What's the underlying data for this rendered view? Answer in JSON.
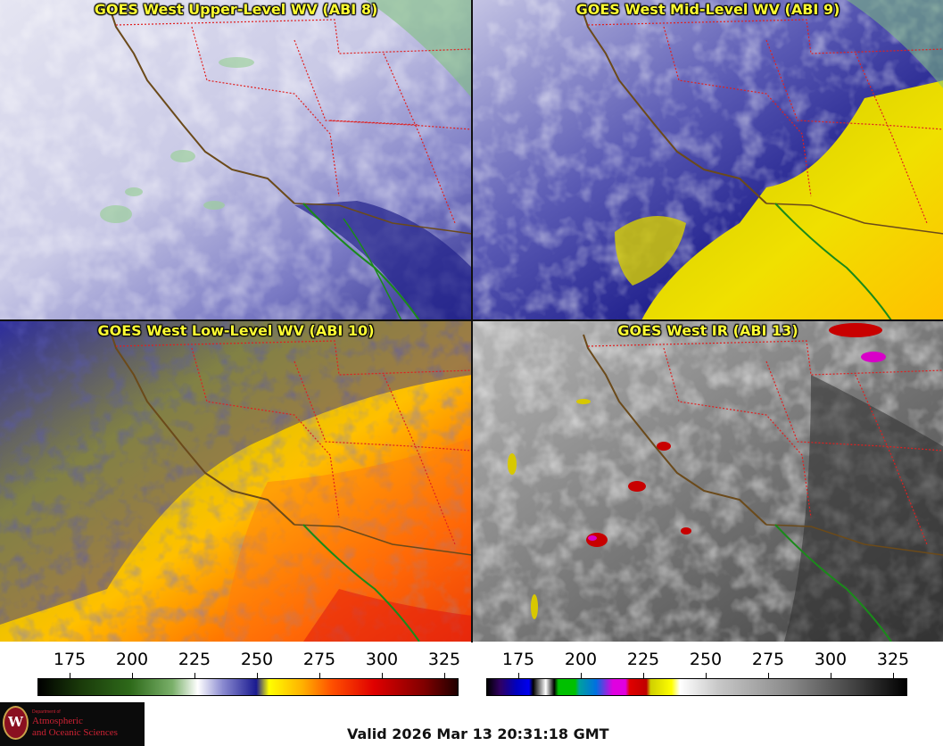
{
  "panels": [
    {
      "title": "GOES West Upper-Level WV (ABI 8)",
      "scheme": "upper"
    },
    {
      "title": "GOES West Mid-Level WV (ABI 9)",
      "scheme": "mid"
    },
    {
      "title": "GOES West Low-Level WV (ABI 10)",
      "scheme": "low"
    },
    {
      "title": "GOES West IR (ABI 13)",
      "scheme": "ir"
    }
  ],
  "colorbars": [
    {
      "name": "water-vapor",
      "ticks": [
        "175",
        "200",
        "225",
        "250",
        "275",
        "300",
        "325"
      ]
    },
    {
      "name": "infrared",
      "ticks": [
        "175",
        "200",
        "225",
        "250",
        "275",
        "300",
        "325"
      ]
    }
  ],
  "logo": {
    "line1": "Department of",
    "line2": "Atmospheric",
    "line3": "and Oceanic Sciences",
    "seal_letter": "W"
  },
  "valid_time": "Valid 2026 Mar 13 20:31:18 GMT",
  "colors": {
    "title": "#ffff33",
    "border_state": "#e02020",
    "coast": "#6b4a1a",
    "mexico_coast": "#1a8a1a"
  }
}
